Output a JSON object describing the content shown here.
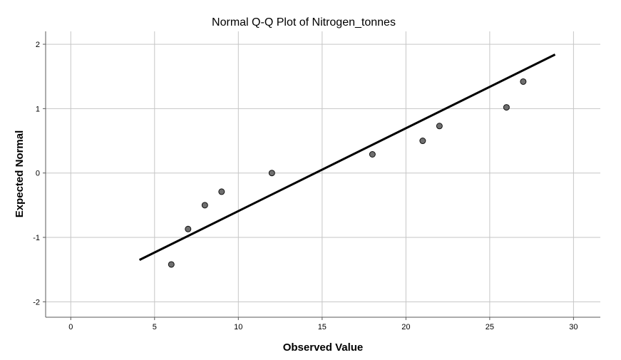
{
  "chart_data": {
    "type": "scatter",
    "title": "Normal Q-Q Plot of Nitrogen_tonnes",
    "xlabel": "Observed Value",
    "ylabel": "Expected Normal",
    "xlim": [
      -1.5,
      31.6
    ],
    "ylim": [
      -2.24,
      2.2
    ],
    "xticks": [
      0,
      5,
      10,
      15,
      20,
      25,
      30
    ],
    "yticks": [
      2,
      1,
      0,
      -1,
      -2
    ],
    "grid": true,
    "points": [
      {
        "x": 6,
        "y": -1.42
      },
      {
        "x": 7,
        "y": -0.87
      },
      {
        "x": 8,
        "y": -0.5
      },
      {
        "x": 9,
        "y": -0.29
      },
      {
        "x": 12,
        "y": 0.0
      },
      {
        "x": 18,
        "y": 0.29
      },
      {
        "x": 21,
        "y": 0.5
      },
      {
        "x": 22,
        "y": 0.73
      },
      {
        "x": 26,
        "y": 1.02
      },
      {
        "x": 27,
        "y": 1.42
      }
    ],
    "reference_line": {
      "x": [
        4.1,
        28.9
      ],
      "y": [
        -1.35,
        1.84
      ]
    }
  }
}
